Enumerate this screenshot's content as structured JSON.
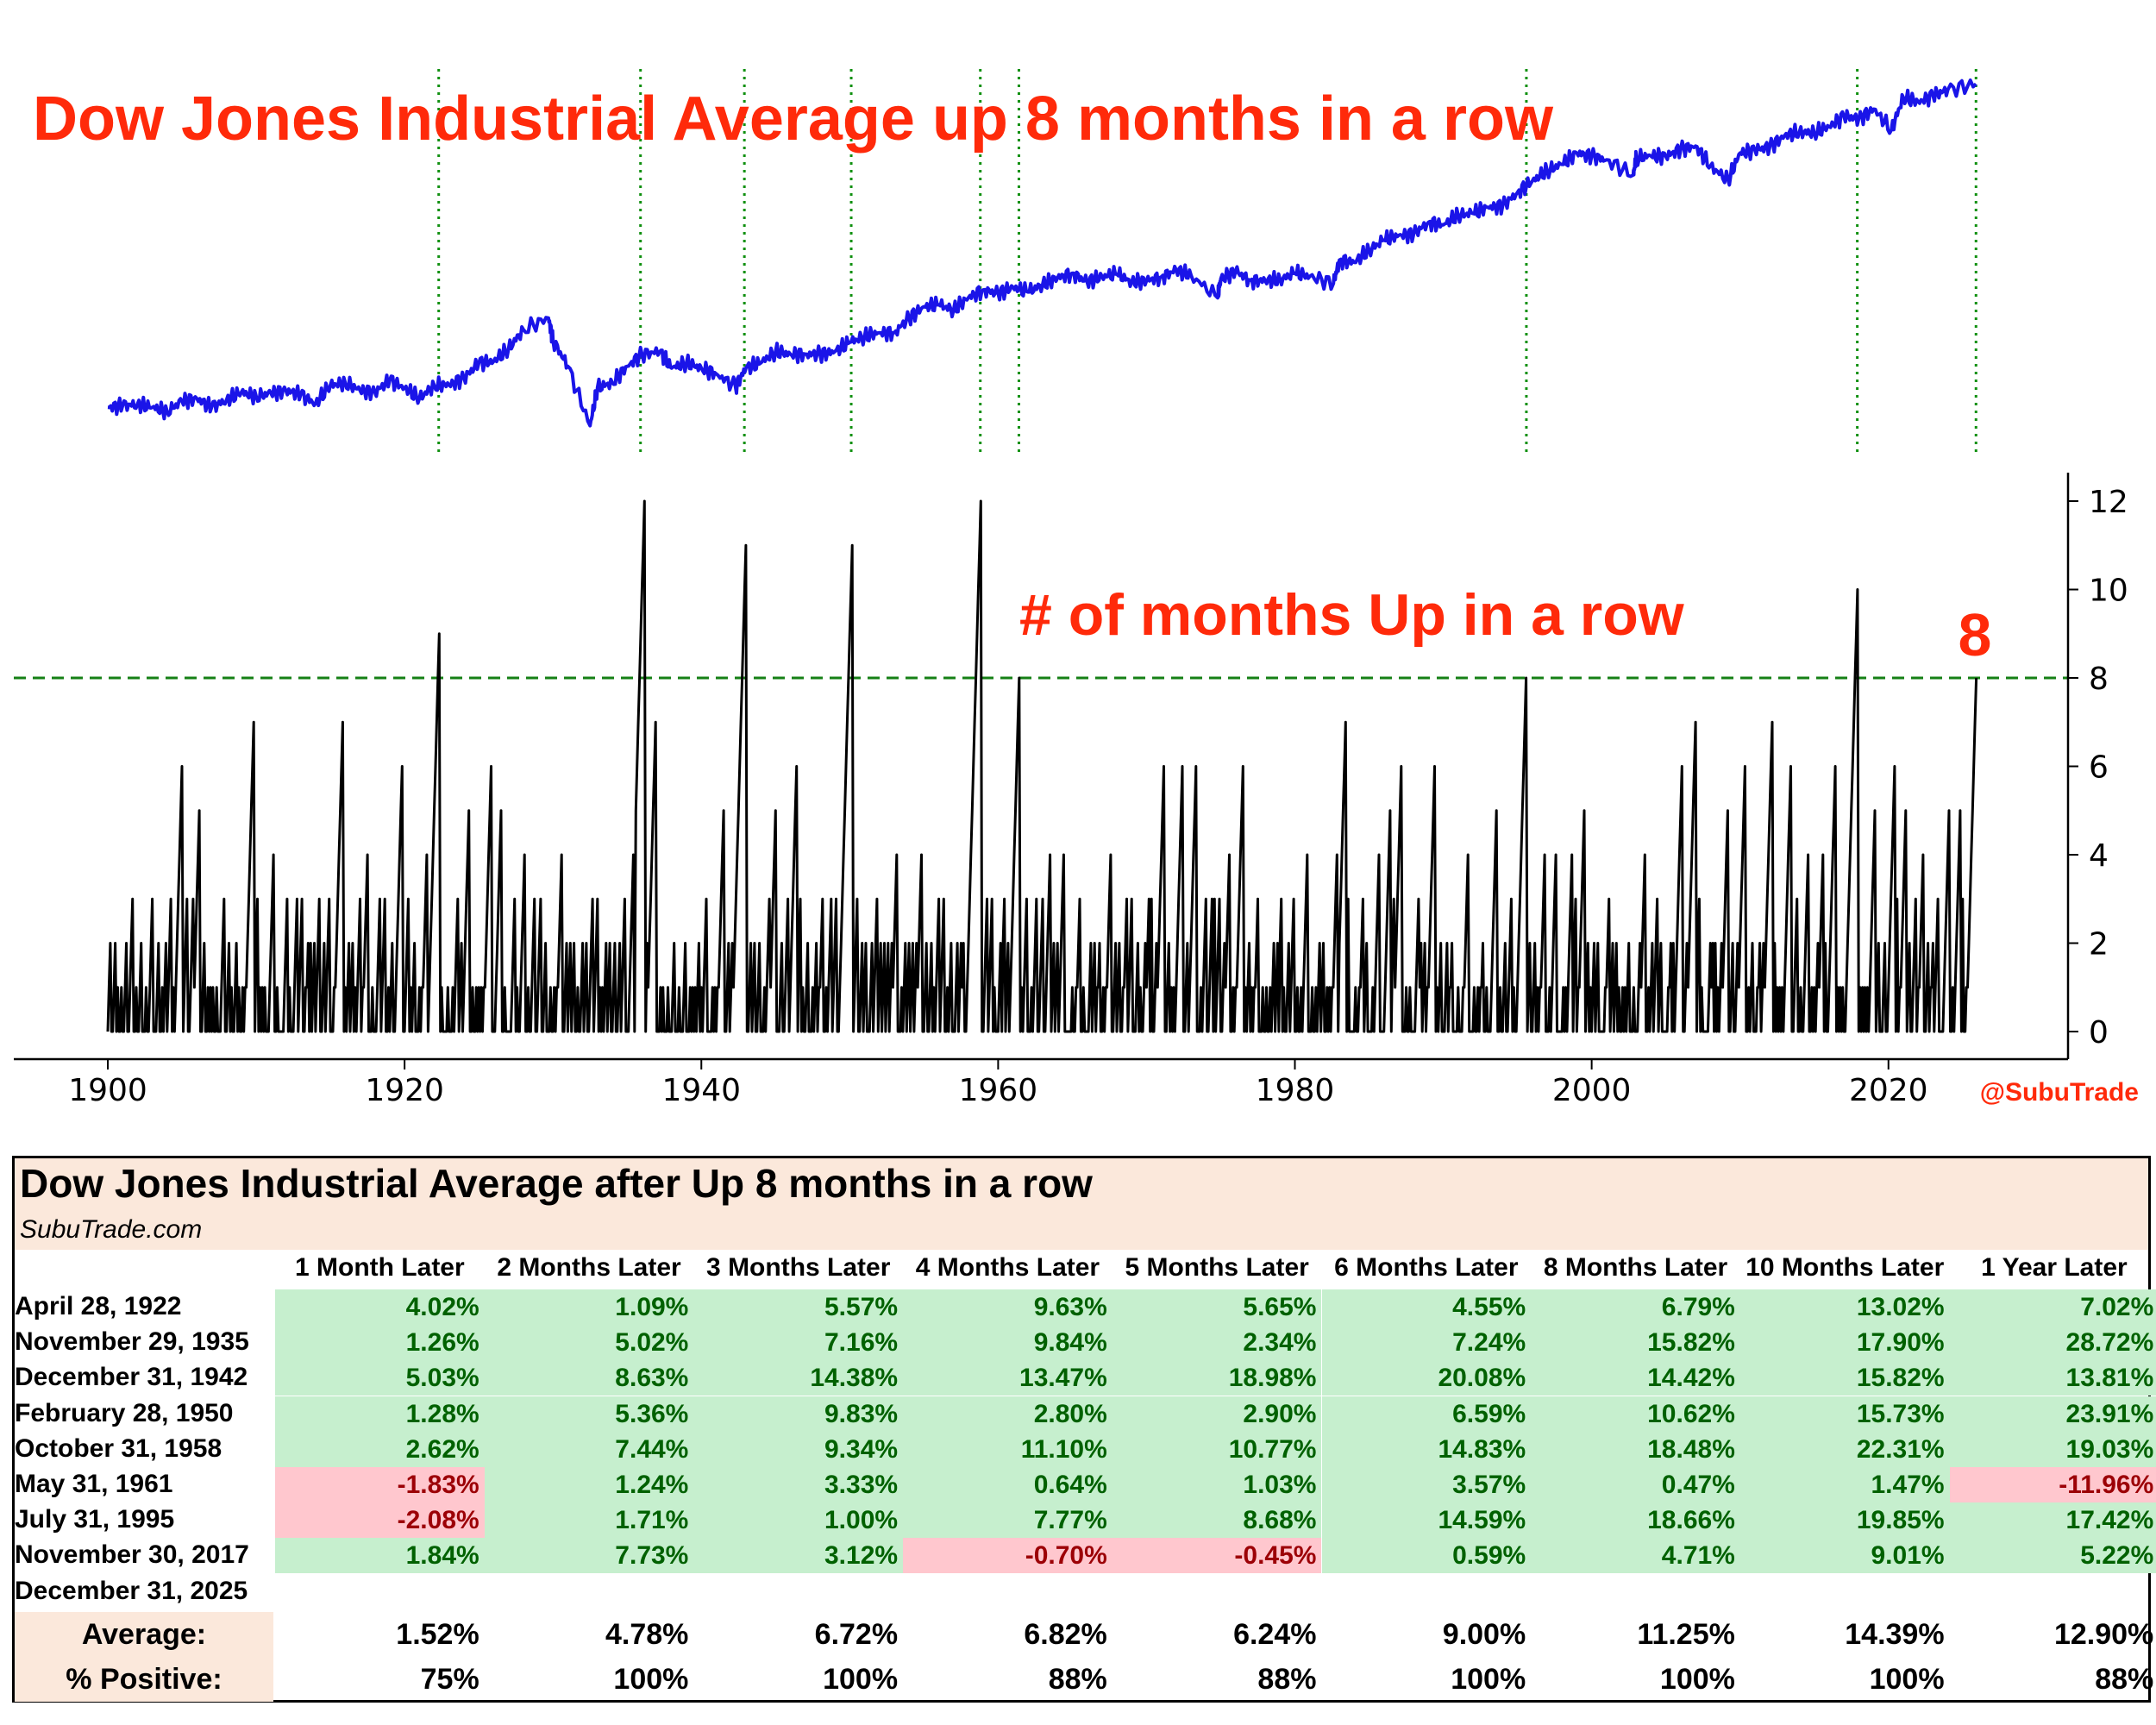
{
  "chart_data": [
    {
      "type": "line",
      "title": "Dow Jones Industrial Average up 8 months in a row",
      "scale": "log",
      "series": [
        {
          "name": "DJIA",
          "color": "#1a14e8",
          "x": [
            1900,
            1901,
            1902,
            1903,
            1904,
            1905,
            1906,
            1907,
            1908,
            1909,
            1910,
            1911,
            1912,
            1913,
            1914,
            1915,
            1916,
            1917,
            1918,
            1919,
            1920,
            1921,
            1922,
            1923,
            1924,
            1925,
            1926,
            1927,
            1928,
            1929.7,
            1930,
            1931,
            1932.5,
            1933,
            1934,
            1935,
            1936,
            1937.2,
            1938,
            1939,
            1940,
            1941,
            1942.3,
            1943,
            1944,
            1945,
            1946,
            1947,
            1948,
            1949,
            1950,
            1951,
            1952,
            1953,
            1954,
            1955,
            1956,
            1957,
            1958,
            1959,
            1960,
            1961,
            1962,
            1963,
            1964,
            1965,
            1966,
            1967,
            1968,
            1969,
            1970,
            1971,
            1972,
            1973,
            1974.8,
            1975,
            1976,
            1977,
            1978,
            1979,
            1980,
            1981,
            1982.6,
            1983,
            1984,
            1985,
            1986,
            1987,
            1988,
            1989,
            1990,
            1991,
            1992,
            1993,
            1994,
            1995,
            1996,
            1997,
            1998,
            1999,
            2000,
            2001,
            2002.8,
            2003,
            2004,
            2005,
            2006,
            2007,
            2008,
            2009.2,
            2010,
            2011,
            2012,
            2013,
            2014,
            2015,
            2016,
            2017,
            2018,
            2019,
            2020.2,
            2021,
            2022,
            2023,
            2024,
            2025.9
          ],
          "y": [
            60,
            62,
            64,
            60,
            55,
            68,
            72,
            60,
            70,
            82,
            75,
            80,
            85,
            78,
            65,
            95,
            100,
            85,
            82,
            105,
            90,
            72,
            95,
            95,
            110,
            150,
            155,
            200,
            300,
            380,
            240,
            140,
            41,
            90,
            100,
            140,
            180,
            190,
            135,
            150,
            135,
            120,
            92,
            135,
            150,
            190,
            180,
            180,
            180,
            190,
            230,
            260,
            280,
            280,
            380,
            480,
            500,
            450,
            580,
            680,
            630,
            720,
            650,
            760,
            870,
            960,
            800,
            900,
            940,
            800,
            820,
            890,
            1020,
            920,
            577,
            850,
            1000,
            830,
            820,
            840,
            960,
            900,
            777,
            1260,
            1200,
            1550,
            1900,
            2100,
            2150,
            2750,
            2600,
            3200,
            3300,
            3750,
            3850,
            5100,
            6450,
            8000,
            9100,
            11500,
            10800,
            10000,
            7286,
            10400,
            10800,
            10700,
            12500,
            13300,
            8800,
            6547,
            11500,
            12200,
            13100,
            16500,
            17800,
            17400,
            19800,
            24700,
            23300,
            28500,
            18591,
            36300,
            33100,
            37700,
            42500,
            48000
          ]
        }
      ]
    },
    {
      "type": "line",
      "title": "# of months Up in a row",
      "annotation": "8",
      "threshold": 8,
      "xlim": [
        1900,
        2026
      ],
      "ylim": [
        0,
        12
      ],
      "yticks": [
        0,
        2,
        4,
        6,
        8,
        10,
        12
      ],
      "xticks": [
        1900,
        1920,
        1940,
        1960,
        1980,
        2000,
        2020
      ],
      "streaks": [
        [
          1905.0,
          6
        ],
        [
          1909.8,
          7
        ],
        [
          1915.8,
          7
        ],
        [
          1919.8,
          6
        ],
        [
          1922.3,
          9
        ],
        [
          1925.8,
          6
        ],
        [
          1936.2,
          12
        ],
        [
          1936.9,
          7
        ],
        [
          1943.0,
          11
        ],
        [
          1950.2,
          11
        ],
        [
          1958.8,
          12
        ],
        [
          1961.4,
          8
        ],
        [
          1983.4,
          7
        ],
        [
          1995.6,
          8
        ],
        [
          2007.0,
          7
        ],
        [
          2012.2,
          7
        ],
        [
          2017.9,
          10
        ],
        [
          2025.9,
          8
        ],
        [
          1903.0,
          3
        ],
        [
          1906.2,
          5
        ],
        [
          1907.8,
          3
        ],
        [
          1911.2,
          4
        ],
        [
          1913.5,
          2
        ],
        [
          1917.5,
          4
        ],
        [
          1921.5,
          4
        ],
        [
          1924.3,
          5
        ],
        [
          1926.5,
          5
        ],
        [
          1928.1,
          4
        ],
        [
          1929.2,
          3
        ],
        [
          1930.6,
          4
        ],
        [
          1932.7,
          3
        ],
        [
          1934.2,
          2
        ],
        [
          1935.4,
          4
        ],
        [
          1938.2,
          2
        ],
        [
          1939.8,
          2
        ],
        [
          1941.5,
          5
        ],
        [
          1945.0,
          5
        ],
        [
          1946.4,
          6
        ],
        [
          1948.2,
          3
        ],
        [
          1951.5,
          2
        ],
        [
          1953.2,
          4
        ],
        [
          1954.8,
          4
        ],
        [
          1956.3,
          3
        ],
        [
          1957.7,
          2
        ],
        [
          1960.2,
          2
        ],
        [
          1962.6,
          3
        ],
        [
          1963.5,
          4
        ],
        [
          1964.4,
          4
        ],
        [
          1965.5,
          3
        ],
        [
          1966.8,
          2
        ],
        [
          1967.6,
          4
        ],
        [
          1968.7,
          3
        ],
        [
          1970.2,
          3
        ],
        [
          1971.2,
          6
        ],
        [
          1972.4,
          6
        ],
        [
          1973.3,
          6
        ],
        [
          1974.4,
          3
        ],
        [
          1975.6,
          4
        ],
        [
          1976.5,
          6
        ],
        [
          1977.5,
          3
        ],
        [
          1978.8,
          2
        ],
        [
          1979.9,
          3
        ],
        [
          1980.8,
          4
        ],
        [
          1981.7,
          2
        ],
        [
          1982.8,
          4
        ],
        [
          1984.6,
          3
        ],
        [
          1985.7,
          4
        ],
        [
          1986.4,
          5
        ],
        [
          1987.2,
          6
        ],
        [
          1988.5,
          2
        ],
        [
          1989.4,
          6
        ],
        [
          1990.6,
          2
        ],
        [
          1991.7,
          4
        ],
        [
          1992.7,
          2
        ],
        [
          1993.6,
          5
        ],
        [
          1994.6,
          3
        ],
        [
          1996.8,
          4
        ],
        [
          1997.6,
          4
        ],
        [
          1998.7,
          4
        ],
        [
          1999.5,
          5
        ],
        [
          2000.4,
          2
        ],
        [
          2001.2,
          3
        ],
        [
          2002.5,
          2
        ],
        [
          2003.6,
          4
        ],
        [
          2004.4,
          3
        ],
        [
          2005.3,
          2
        ],
        [
          2006.1,
          6
        ],
        [
          2008.2,
          2
        ],
        [
          2009.2,
          5
        ],
        [
          2010.3,
          6
        ],
        [
          2011.3,
          2
        ],
        [
          2013.4,
          6
        ],
        [
          2014.6,
          4
        ],
        [
          2015.6,
          4
        ],
        [
          2016.4,
          6
        ],
        [
          2019.1,
          5
        ],
        [
          2020.4,
          6
        ],
        [
          2021.2,
          5
        ],
        [
          2022.3,
          4
        ],
        [
          2023.0,
          2
        ],
        [
          2024.1,
          5
        ],
        [
          2024.8,
          5
        ]
      ]
    }
  ],
  "vlines": [
    1922.3,
    1935.9,
    1942.9,
    1950.1,
    1958.8,
    1961.4,
    1995.6,
    2017.9,
    2025.9
  ],
  "handle": "@SubuTrade",
  "table": {
    "title": "Dow Jones Industrial Average after Up 8 months in a row",
    "subtitle": "SubuTrade.com",
    "headers": [
      "1 Month Later",
      "2 Months Later",
      "3 Months Later",
      "4 Months Later",
      "5 Months Later",
      "6 Months Later",
      "8 Months Later",
      "10 Months Later",
      "1 Year Later"
    ],
    "rows": [
      {
        "date": "April 28, 1922",
        "values": [
          "4.02%",
          "1.09%",
          "5.57%",
          "9.63%",
          "5.65%",
          "4.55%",
          "6.79%",
          "13.02%",
          "7.02%"
        ]
      },
      {
        "date": "November 29, 1935",
        "values": [
          "1.26%",
          "5.02%",
          "7.16%",
          "9.84%",
          "2.34%",
          "7.24%",
          "15.82%",
          "17.90%",
          "28.72%"
        ]
      },
      {
        "date": "December 31, 1942",
        "values": [
          "5.03%",
          "8.63%",
          "14.38%",
          "13.47%",
          "18.98%",
          "20.08%",
          "14.42%",
          "15.82%",
          "13.81%"
        ]
      },
      {
        "date": "February 28, 1950",
        "values": [
          "1.28%",
          "5.36%",
          "9.83%",
          "2.80%",
          "2.90%",
          "6.59%",
          "10.62%",
          "15.73%",
          "23.91%"
        ]
      },
      {
        "date": "October 31, 1958",
        "values": [
          "2.62%",
          "7.44%",
          "9.34%",
          "11.10%",
          "10.77%",
          "14.83%",
          "18.48%",
          "22.31%",
          "19.03%"
        ]
      },
      {
        "date": "May 31, 1961",
        "values": [
          "-1.83%",
          "1.24%",
          "3.33%",
          "0.64%",
          "1.03%",
          "3.57%",
          "0.47%",
          "1.47%",
          "-11.96%"
        ]
      },
      {
        "date": "July 31, 1995",
        "values": [
          "-2.08%",
          "1.71%",
          "1.00%",
          "7.77%",
          "8.68%",
          "14.59%",
          "18.66%",
          "19.85%",
          "17.42%"
        ]
      },
      {
        "date": "November 30, 2017",
        "values": [
          "1.84%",
          "7.73%",
          "3.12%",
          "-0.70%",
          "-0.45%",
          "0.59%",
          "4.71%",
          "9.01%",
          "5.22%"
        ]
      },
      {
        "date": "December 31, 2025",
        "values": []
      }
    ],
    "summary": [
      {
        "label": "Average:",
        "values": [
          "1.52%",
          "4.78%",
          "6.72%",
          "6.82%",
          "6.24%",
          "9.00%",
          "11.25%",
          "14.39%",
          "12.90%"
        ]
      },
      {
        "label": "% Positive:",
        "values": [
          "75%",
          "100%",
          "100%",
          "88%",
          "88%",
          "100%",
          "100%",
          "100%",
          "88%"
        ]
      }
    ]
  },
  "colors": {
    "title": "#ff2a0a",
    "price_line": "#1a14e8",
    "vline": "#109010",
    "threshold": "#158015",
    "pos_bg": "#c6efce",
    "pos_fg": "#006100",
    "neg_bg": "#ffc7ce",
    "neg_fg": "#9c0006",
    "header_bg": "#fbe8db"
  }
}
